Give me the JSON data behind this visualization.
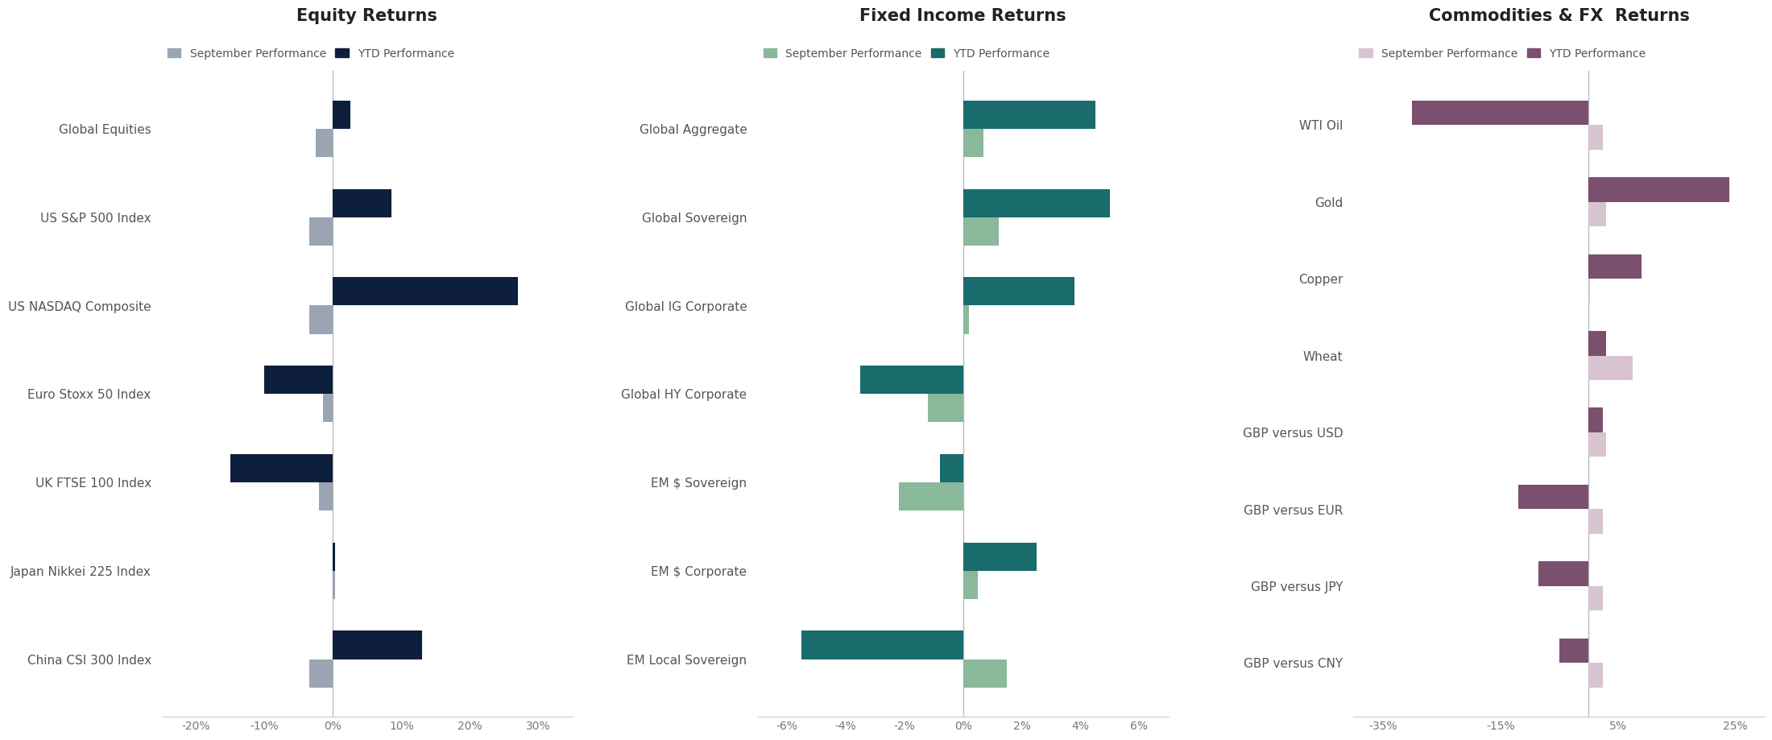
{
  "equity": {
    "title": "Equity Returns",
    "categories": [
      "Global Equities",
      "US S&P 500 Index",
      "US NASDAQ Composite",
      "Euro Stoxx 50 Index",
      "UK FTSE 100 Index",
      "Japan Nikkei 225 Index",
      "China CSI 300 Index"
    ],
    "sep_perf": [
      -2.5,
      -3.5,
      -3.5,
      -1.5,
      -2.0,
      0.3,
      -3.5
    ],
    "ytd_perf": [
      2.5,
      8.5,
      27.0,
      -10.0,
      -15.0,
      0.3,
      13.0
    ],
    "sep_color": "#9aa4b2",
    "ytd_color": "#0d1f3c",
    "xlim": [
      -25,
      35
    ],
    "xticks": [
      -20,
      -10,
      0,
      10,
      20,
      30
    ],
    "xtick_labels": [
      "-20%",
      "-10%",
      "0%",
      "10%",
      "20%",
      "30%"
    ]
  },
  "fixed_income": {
    "title": "Fixed Income Returns",
    "categories": [
      "Global Aggregate",
      "Global Sovereign",
      "Global IG Corporate",
      "Global HY Corporate",
      "EM $ Sovereign",
      "EM $ Corporate",
      "EM Local Sovereign"
    ],
    "sep_perf": [
      0.7,
      1.2,
      0.2,
      -1.2,
      -2.2,
      0.5,
      1.5
    ],
    "ytd_perf": [
      4.5,
      5.0,
      3.8,
      -3.5,
      -0.8,
      2.5,
      -5.5
    ],
    "sep_color": "#8ab89a",
    "ytd_color": "#1a6b6b",
    "xlim": [
      -7,
      7
    ],
    "xticks": [
      -6,
      -4,
      -2,
      0,
      2,
      4,
      6
    ],
    "xtick_labels": [
      "-6%",
      "-4%",
      "-2%",
      "0%",
      "2%",
      "4%",
      "6%"
    ]
  },
  "commodities": {
    "title": "Commodities & FX  Returns",
    "categories": [
      "WTI Oil",
      "Gold",
      "Copper",
      "Wheat",
      "GBP versus USD",
      "GBP versus EUR",
      "GBP versus JPY",
      "GBP versus CNY"
    ],
    "sep_perf": [
      2.5,
      3.0,
      0.3,
      7.5,
      3.0,
      2.5,
      2.5,
      2.5
    ],
    "ytd_perf": [
      -30.0,
      24.0,
      9.0,
      3.0,
      2.5,
      -12.0,
      -8.5,
      -5.0
    ],
    "sep_color": "#d8c4d0",
    "ytd_color": "#7b4f6e",
    "xlim": [
      -40,
      30
    ],
    "xticks": [
      -35,
      -15,
      5,
      25
    ],
    "xtick_labels": [
      "-35%",
      "-15%",
      "5%",
      "25%"
    ]
  },
  "background_color": "#ffffff",
  "title_fontsize": 15,
  "label_fontsize": 11,
  "tick_fontsize": 10,
  "legend_fontsize": 10,
  "bar_height": 0.32
}
